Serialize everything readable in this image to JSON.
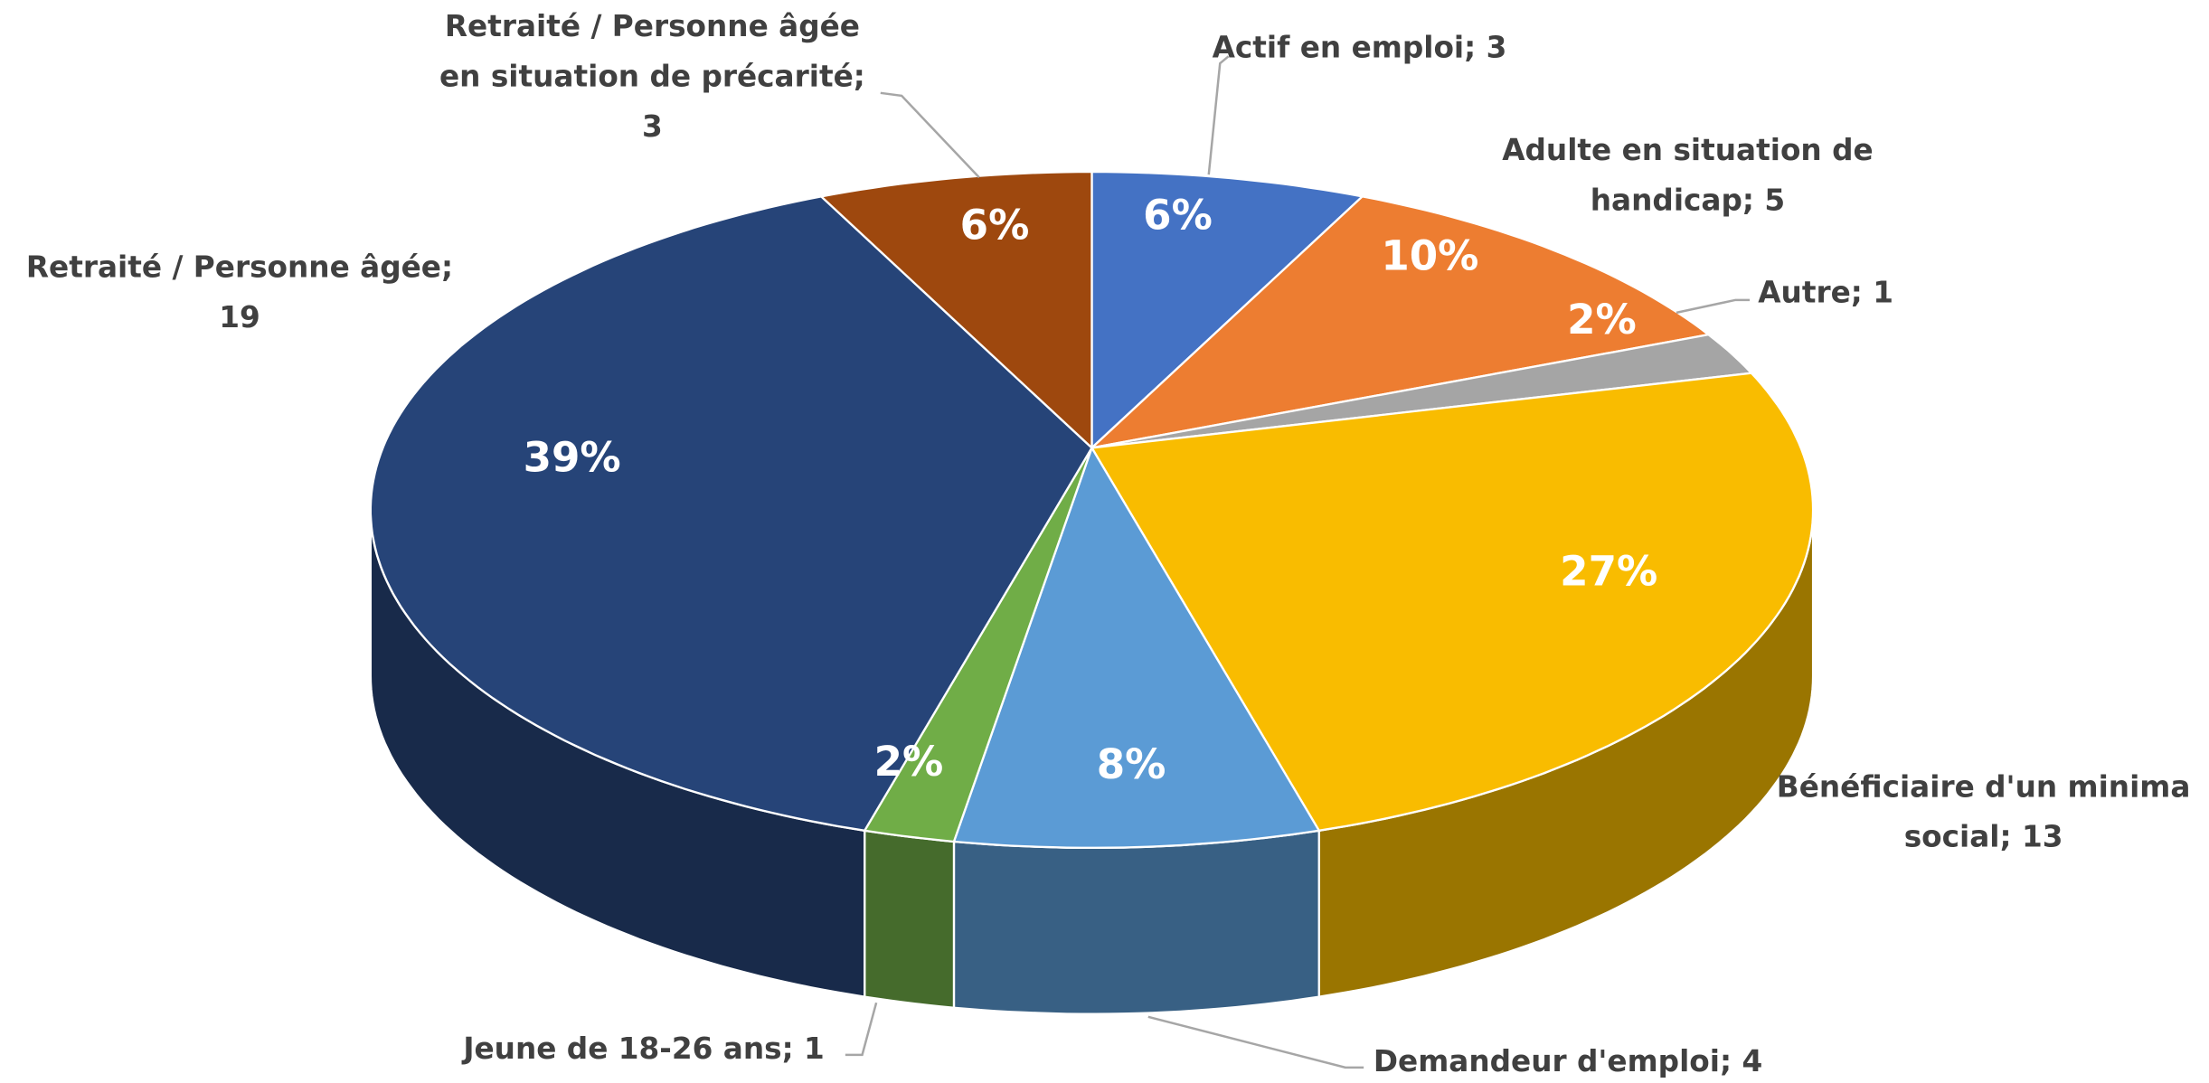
{
  "chart_data": {
    "type": "pie3d",
    "values": [
      3,
      5,
      1,
      13,
      4,
      1,
      19,
      3
    ],
    "percent_labels": [
      "6%",
      "10%",
      "2%",
      "27%",
      "8%",
      "2%",
      "39%",
      "6%"
    ],
    "labels": [
      [
        "Actif en emploi; 3"
      ],
      [
        "Adulte en situation de",
        "handicap; 5"
      ],
      [
        "Autre; 1"
      ],
      [
        "Bénéficiaire d'un minima",
        "social; 13"
      ],
      [
        "Demandeur d'emploi; 4"
      ],
      [
        "Jeune de 18-26 ans; 1"
      ],
      [
        "Retraité / Personne âgée;",
        "19"
      ],
      [
        "Retraité / Personne âgée",
        "en situation de précarité;",
        "3"
      ]
    ],
    "colors": [
      "#4472c4",
      "#ed7d31",
      "#a5a5a5",
      "#f9bc00",
      "#5b9bd5",
      "#70ad47",
      "#264478",
      "#9e480e"
    ]
  }
}
